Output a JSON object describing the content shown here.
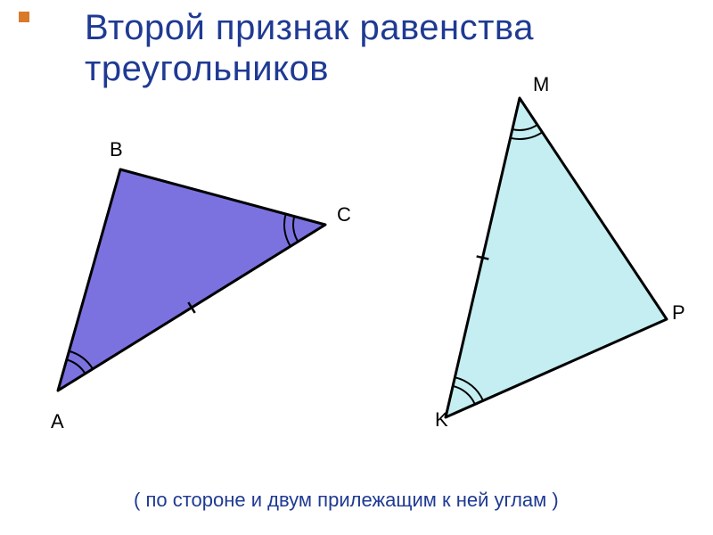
{
  "title_line1": "Второй признак равенства",
  "title_line2": "треугольников",
  "title_color": "#1f3a93",
  "subtitle": "(  по стороне и двум прилежащим к ней углам  )",
  "subtitle_color": "#1f3a93",
  "orange_square_color": "#d97a2b",
  "background_color": "#ffffff",
  "triangles": {
    "left": {
      "fill": "#7b72e0",
      "stroke": "#000000",
      "stroke_width": 3,
      "points": {
        "A": [
          65,
          438
        ],
        "B": [
          135,
          190
        ],
        "C": [
          365,
          252
        ]
      },
      "label_positions": {
        "A": [
          57,
          460
        ],
        "B": [
          123,
          155
        ],
        "C": [
          378,
          228
        ]
      },
      "angle_arcs": [
        {
          "at": "A",
          "radii": [
            36,
            46
          ]
        },
        {
          "at": "C",
          "radii": [
            36,
            46
          ]
        }
      ],
      "tick_on_edge": {
        "from": "A",
        "to": "C",
        "ticks": 1,
        "len": 14
      }
    },
    "right": {
      "fill": "#c4eef2",
      "stroke": "#000000",
      "stroke_width": 3,
      "points": {
        "M": [
          583,
          110
        ],
        "K": [
          500,
          468
        ],
        "P": [
          748,
          358
        ]
      },
      "label_positions": {
        "M": [
          598,
          82
        ],
        "K": [
          488,
          458
        ],
        "P": [
          754,
          338
        ]
      },
      "angle_arcs": [
        {
          "at": "M",
          "radii": [
            36,
            46
          ]
        },
        {
          "at": "K",
          "radii": [
            36,
            46
          ]
        }
      ],
      "tick_on_edge": {
        "from": "M",
        "to": "K",
        "ticks": 1,
        "len": 14
      }
    }
  }
}
